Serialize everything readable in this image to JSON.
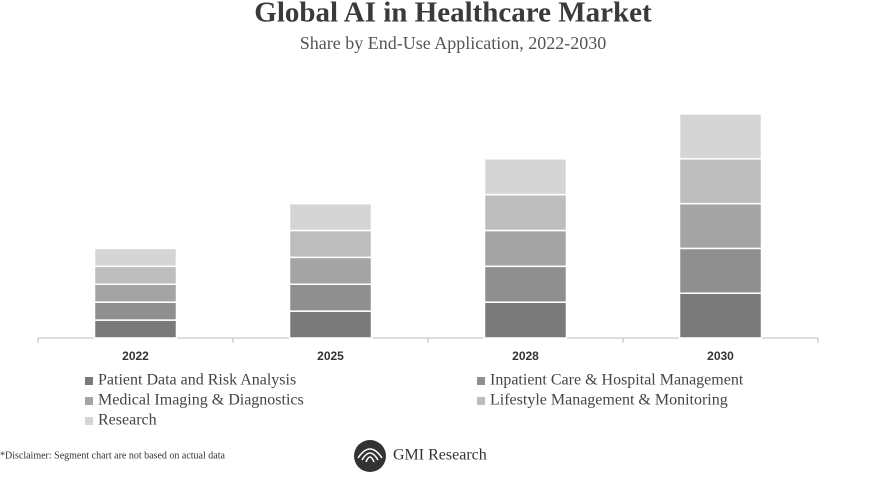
{
  "chart_data": {
    "type": "stacked_bar",
    "title": "Global AI in Healthcare Market",
    "subtitle": "Share by End-Use Application, 2022-2030",
    "categories": [
      "2022",
      "2025",
      "2028",
      "2030"
    ],
    "series": [
      {
        "name": "Patient Data and Risk Analysis",
        "color": "#7a7a7a",
        "values": [
          2,
          3,
          4,
          5
        ]
      },
      {
        "name": "Inpatient Care & Hospital Management",
        "color": "#8f8f8f",
        "values": [
          2,
          3,
          4,
          5
        ]
      },
      {
        "name": "Medical Imaging & Diagnostics",
        "color": "#a4a4a4",
        "values": [
          2,
          3,
          4,
          5
        ]
      },
      {
        "name": "Lifestyle Management & Monitoring",
        "color": "#bdbdbd",
        "values": [
          2,
          3,
          4,
          5
        ]
      },
      {
        "name": "Research",
        "color": "#d5d5d5",
        "values": [
          2,
          3,
          4,
          5
        ]
      }
    ],
    "ylim": [
      0,
      25
    ],
    "disclaimer": "*Disclaimer:  Segment chart are not based on actual data",
    "brand": "GMI Research"
  }
}
